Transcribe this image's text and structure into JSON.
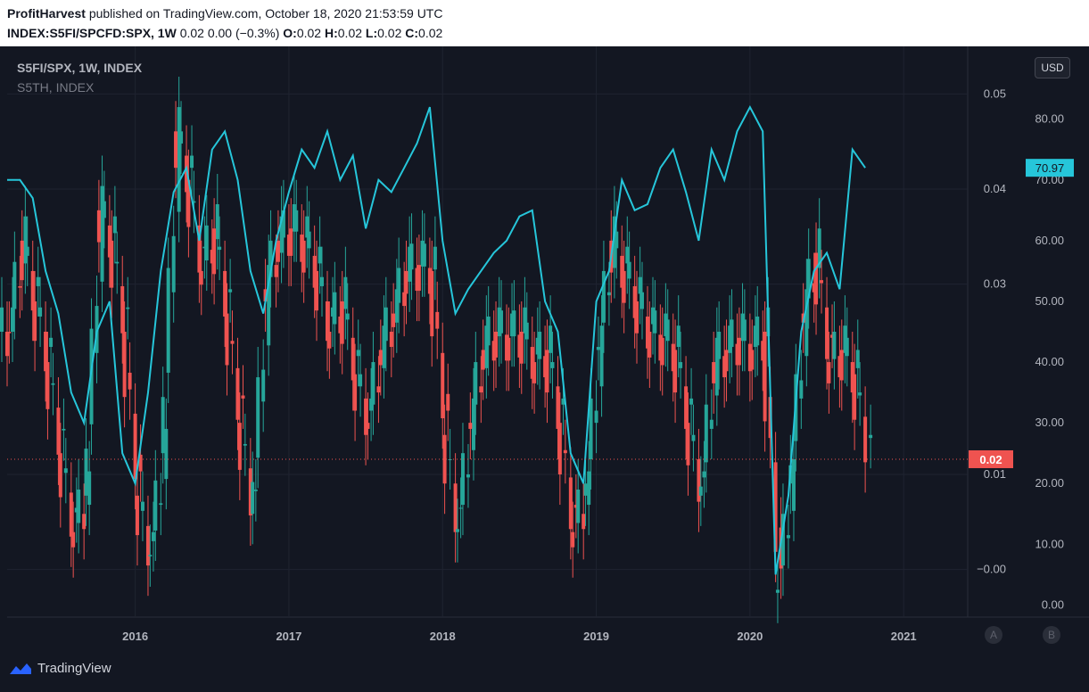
{
  "header": {
    "author": "ProfitHarvest",
    "published": "published on TradingView.com, October 18, 2020 21:53:59 UTC",
    "symbol": "INDEX:S5FI/SPCFD:SPX, 1W",
    "ohlc_text": "0.02 0.00 (−0.3%)",
    "o_label": "O:",
    "o_value": "0.02",
    "h_label": "H:",
    "h_value": "0.02",
    "l_label": "L:",
    "l_value": "0.02",
    "c_label": "C:",
    "c_value": "0.02"
  },
  "legend": {
    "main_series": "S5FI/SPX, 1W, INDEX",
    "overlay_series": "S5TH, INDEX"
  },
  "currency_button": "USD",
  "footer": {
    "brand": "TradingView",
    "btn_a": "A",
    "btn_b": "B"
  },
  "colors": {
    "background": "#131722",
    "grid": "#1f2330",
    "up_candle": "#26a69a",
    "down_candle": "#ef5350",
    "overlay_line": "#26c6da",
    "axis_text": "#b2b5be"
  },
  "chart_data": {
    "type": "candlestick",
    "x_axis": {
      "ticks": [
        "2016",
        "2017",
        "2018",
        "2019",
        "2020",
        "2021"
      ],
      "range": [
        "2015-03",
        "2021-06"
      ]
    },
    "y_axis_inner": {
      "ticks": [
        "0.05",
        "0.04",
        "0.03",
        "0.01",
        "−0.00"
      ],
      "range": [
        -0.005,
        0.055
      ]
    },
    "y_axis_outer": {
      "ticks": [
        "80.00",
        "70.00",
        "60.00",
        "50.00",
        "40.00",
        "30.00",
        "20.00",
        "10.00",
        "0.00"
      ],
      "range": [
        -2,
        92
      ]
    },
    "last_price_label": "0.02",
    "overlay_last_label": "70.97",
    "grid": true,
    "series": [
      {
        "name": "S5FI/SPX, 1W, INDEX",
        "kind": "candles",
        "unit": "outer_scale",
        "x": [
          "2015-03",
          "2015-04",
          "2015-05",
          "2015-06",
          "2015-07",
          "2015-08",
          "2015-09",
          "2015-10",
          "2015-11",
          "2015-12",
          "2016-01",
          "2016-02",
          "2016-03",
          "2016-04",
          "2016-05",
          "2016-06",
          "2016-07",
          "2016-08",
          "2016-09",
          "2016-10",
          "2016-11",
          "2016-12",
          "2017-01",
          "2017-02",
          "2017-03",
          "2017-04",
          "2017-05",
          "2017-06",
          "2017-07",
          "2017-08",
          "2017-09",
          "2017-10",
          "2017-11",
          "2017-12",
          "2018-01",
          "2018-02",
          "2018-03",
          "2018-04",
          "2018-05",
          "2018-06",
          "2018-07",
          "2018-08",
          "2018-09",
          "2018-10",
          "2018-11",
          "2018-12",
          "2019-01",
          "2019-02",
          "2019-03",
          "2019-04",
          "2019-05",
          "2019-06",
          "2019-07",
          "2019-08",
          "2019-09",
          "2019-10",
          "2019-11",
          "2019-12",
          "2020-01",
          "2020-02",
          "2020-03",
          "2020-04",
          "2020-05",
          "2020-06",
          "2020-07",
          "2020-08",
          "2020-09",
          "2020-10"
        ],
        "values": [
          45,
          60,
          50,
          40,
          25,
          12,
          18,
          65,
          60,
          45,
          18,
          8,
          25,
          78,
          70,
          55,
          62,
          48,
          30,
          15,
          52,
          60,
          62,
          60,
          55,
          45,
          50,
          38,
          30,
          42,
          48,
          55,
          56,
          55,
          28,
          12,
          30,
          42,
          45,
          44,
          45,
          40,
          42,
          30,
          12,
          18,
          42,
          60,
          55,
          50,
          45,
          44,
          42,
          30,
          18,
          40,
          42,
          44,
          42,
          45,
          2,
          20,
          48,
          58,
          40,
          42,
          38,
          24
        ]
      },
      {
        "name": "S5TH, INDEX",
        "kind": "line",
        "unit": "outer_scale",
        "x": [
          "2015-03",
          "2015-04",
          "2015-05",
          "2015-06",
          "2015-07",
          "2015-08",
          "2015-09",
          "2015-10",
          "2015-11",
          "2015-12",
          "2016-01",
          "2016-02",
          "2016-03",
          "2016-04",
          "2016-05",
          "2016-06",
          "2016-07",
          "2016-08",
          "2016-09",
          "2016-10",
          "2016-11",
          "2016-12",
          "2017-01",
          "2017-02",
          "2017-03",
          "2017-04",
          "2017-05",
          "2017-06",
          "2017-07",
          "2017-08",
          "2017-09",
          "2017-10",
          "2017-11",
          "2017-12",
          "2018-01",
          "2018-02",
          "2018-03",
          "2018-04",
          "2018-05",
          "2018-06",
          "2018-07",
          "2018-08",
          "2018-09",
          "2018-10",
          "2018-11",
          "2018-12",
          "2019-01",
          "2019-02",
          "2019-03",
          "2019-04",
          "2019-05",
          "2019-06",
          "2019-07",
          "2019-08",
          "2019-09",
          "2019-10",
          "2019-11",
          "2019-12",
          "2020-01",
          "2020-02",
          "2020-03",
          "2020-04",
          "2020-05",
          "2020-06",
          "2020-07",
          "2020-08",
          "2020-09",
          "2020-10"
        ],
        "values": [
          70,
          70,
          67,
          55,
          48,
          35,
          30,
          45,
          50,
          25,
          20,
          35,
          55,
          68,
          72,
          60,
          75,
          78,
          70,
          55,
          48,
          60,
          68,
          75,
          72,
          78,
          70,
          74,
          62,
          70,
          68,
          72,
          76,
          82,
          60,
          48,
          52,
          55,
          58,
          60,
          64,
          65,
          50,
          45,
          25,
          20,
          50,
          55,
          70,
          65,
          66,
          72,
          75,
          68,
          60,
          75,
          70,
          78,
          82,
          78,
          5,
          18,
          45,
          55,
          58,
          52,
          75,
          72
        ]
      }
    ]
  }
}
